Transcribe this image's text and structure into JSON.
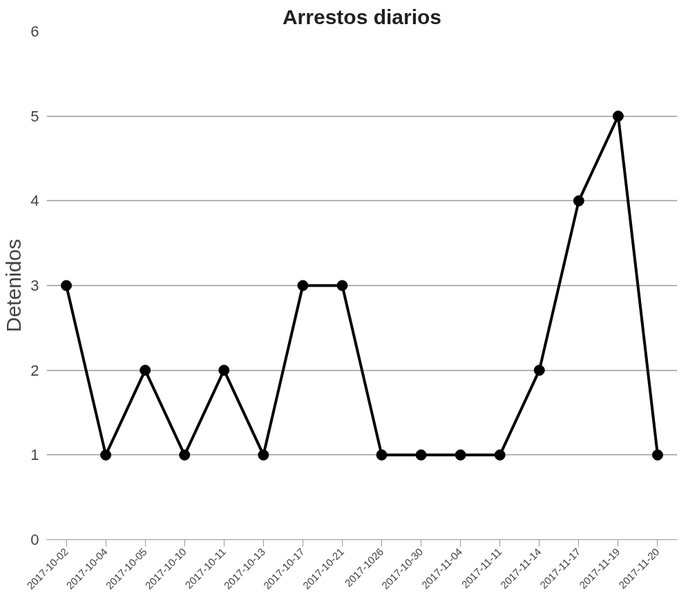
{
  "chart_data": {
    "type": "line",
    "title": "Arrestos diarios",
    "ylabel": "Detenidos",
    "categories": [
      "2017-10-02",
      "2017-10-04",
      "2017-10-05",
      "2017-10-10",
      "2017-10-11",
      "2017-10-13",
      "2017-10-17",
      "2017-10-21",
      "2017-1026",
      "2017-10-30",
      "2017-11-04",
      "2017-11-11",
      "2017-11-14",
      "2017-11-17",
      "2017-11-19",
      "2017-11-20"
    ],
    "series": [
      {
        "color": "#000000",
        "values": [
          3,
          1,
          2,
          1,
          2,
          1,
          3,
          3,
          1,
          1,
          1,
          1,
          2,
          4,
          5,
          1
        ]
      }
    ],
    "ylim": [
      0,
      6
    ],
    "yticks": [
      0,
      1,
      2,
      3,
      4,
      5,
      6
    ],
    "grid": "y",
    "marker": "circle",
    "line_style": "solid"
  }
}
